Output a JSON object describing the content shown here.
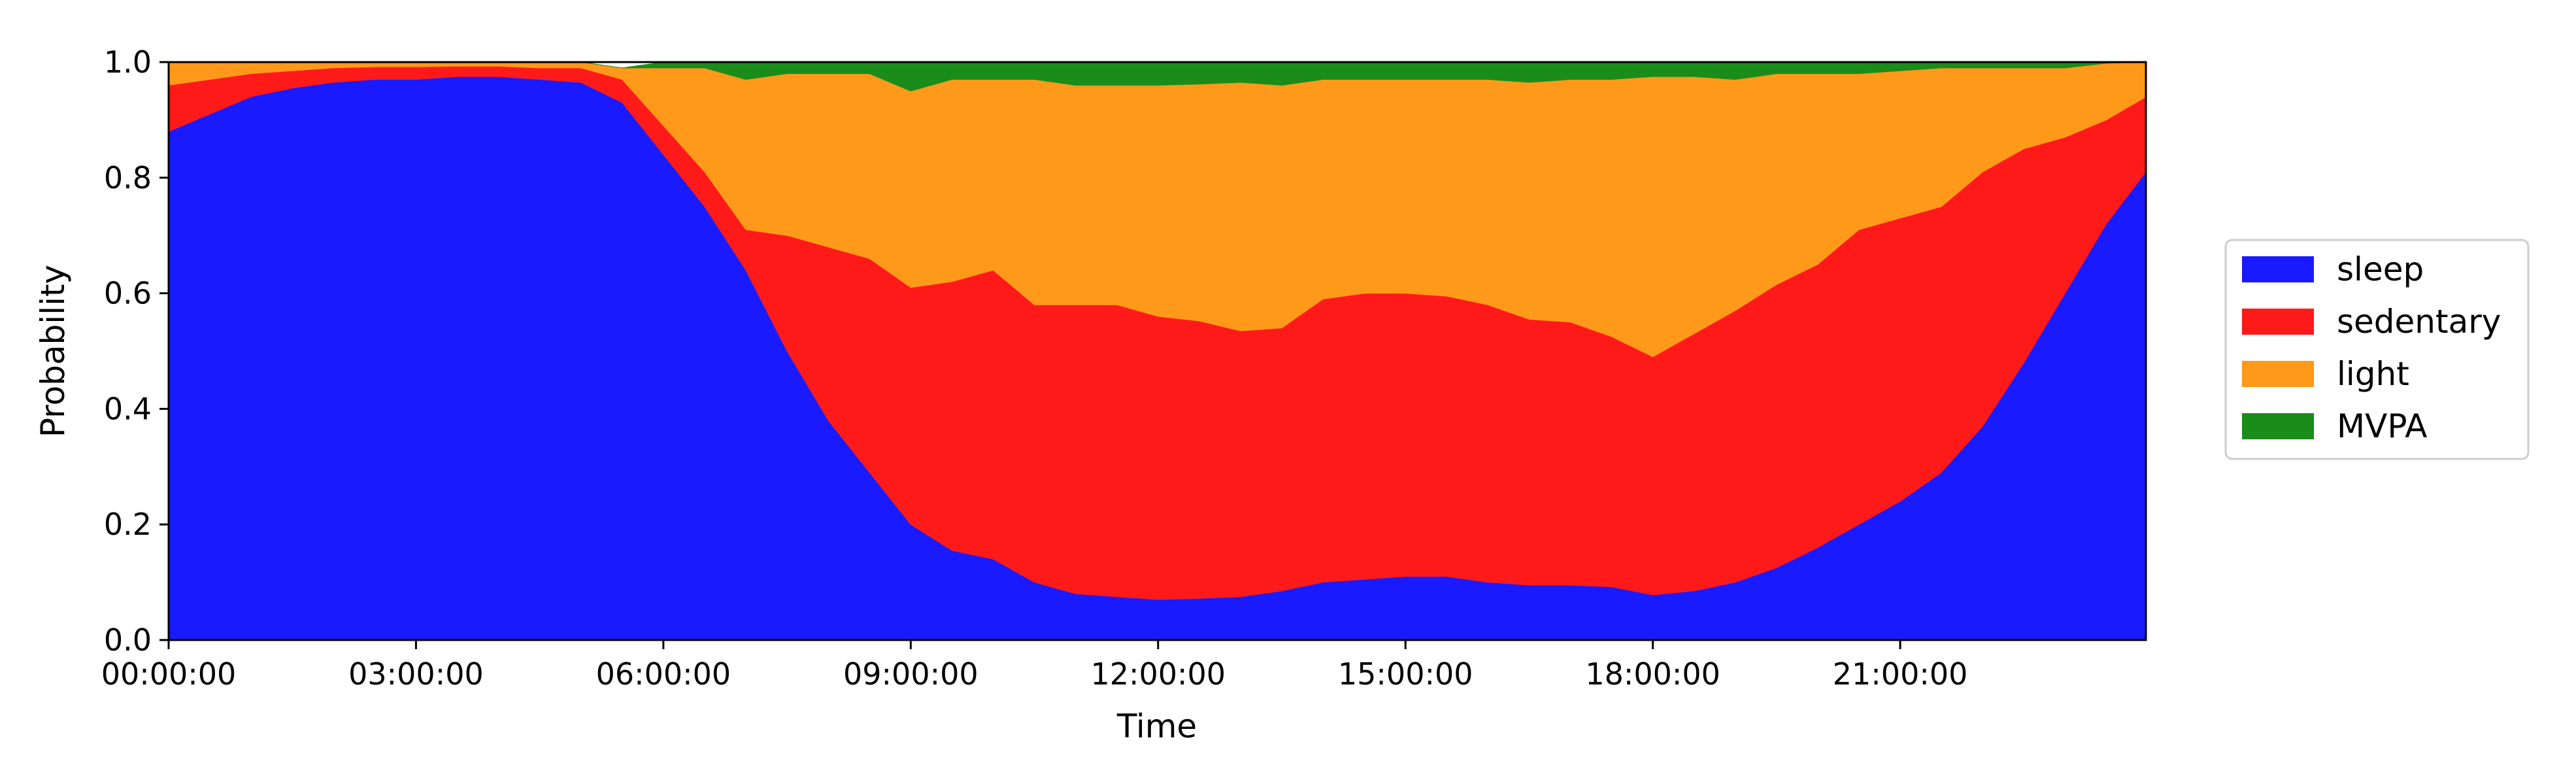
{
  "chart_data": {
    "type": "area",
    "stacked": true,
    "title": "",
    "xlabel": "Time",
    "ylabel": "Probability",
    "xlim": [
      "00:00:00",
      "23:59:59"
    ],
    "ylim": [
      0,
      1
    ],
    "grid": false,
    "legend": {
      "placement": "right-outside",
      "entries": [
        "sleep",
        "sedentary",
        "light",
        "MVPA"
      ]
    },
    "x_ticks": [
      "00:00:00",
      "03:00:00",
      "06:00:00",
      "09:00:00",
      "12:00:00",
      "15:00:00",
      "18:00:00",
      "21:00:00"
    ],
    "y_ticks": [
      "0.0",
      "0.2",
      "0.4",
      "0.6",
      "0.8",
      "1.0"
    ],
    "x_hours": [
      0,
      0.5,
      1,
      1.5,
      2,
      2.5,
      3,
      3.5,
      4,
      4.5,
      5,
      5.5,
      6,
      6.5,
      7,
      7.5,
      8,
      8.5,
      9,
      9.5,
      10,
      10.5,
      11,
      11.5,
      12,
      12.5,
      13,
      13.5,
      14,
      14.5,
      15,
      15.5,
      16,
      16.5,
      17,
      17.5,
      18,
      18.5,
      19,
      19.5,
      20,
      20.5,
      21,
      21.5,
      22,
      22.5,
      23,
      23.5,
      23.98
    ],
    "series": [
      {
        "name": "sleep",
        "color": "#1a1aff",
        "values": [
          0.88,
          0.91,
          0.94,
          0.955,
          0.965,
          0.97,
          0.97,
          0.975,
          0.975,
          0.97,
          0.965,
          0.93,
          0.84,
          0.75,
          0.64,
          0.5,
          0.38,
          0.29,
          0.2,
          0.155,
          0.14,
          0.1,
          0.08,
          0.075,
          0.07,
          0.072,
          0.075,
          0.085,
          0.1,
          0.105,
          0.11,
          0.11,
          0.1,
          0.095,
          0.095,
          0.092,
          0.078,
          0.085,
          0.1,
          0.125,
          0.16,
          0.2,
          0.24,
          0.29,
          0.37,
          0.48,
          0.6,
          0.72,
          0.81
        ]
      },
      {
        "name": "sedentary",
        "color": "#ff1a1a",
        "values": [
          0.08,
          0.06,
          0.04,
          0.03,
          0.025,
          0.022,
          0.022,
          0.018,
          0.018,
          0.02,
          0.025,
          0.04,
          0.05,
          0.06,
          0.07,
          0.2,
          0.3,
          0.37,
          0.41,
          0.465,
          0.5,
          0.48,
          0.5,
          0.505,
          0.49,
          0.48,
          0.46,
          0.455,
          0.49,
          0.495,
          0.49,
          0.485,
          0.48,
          0.46,
          0.455,
          0.433,
          0.412,
          0.445,
          0.47,
          0.49,
          0.49,
          0.51,
          0.49,
          0.46,
          0.44,
          0.37,
          0.27,
          0.18,
          0.13
        ]
      },
      {
        "name": "light",
        "color": "#ff991a",
        "values": [
          0.04,
          0.03,
          0.02,
          0.015,
          0.01,
          0.008,
          0.008,
          0.007,
          0.007,
          0.01,
          0.01,
          0.02,
          0.1,
          0.18,
          0.26,
          0.28,
          0.3,
          0.32,
          0.34,
          0.35,
          0.33,
          0.39,
          0.38,
          0.38,
          0.4,
          0.41,
          0.43,
          0.42,
          0.38,
          0.37,
          0.37,
          0.375,
          0.39,
          0.41,
          0.42,
          0.445,
          0.485,
          0.445,
          0.4,
          0.365,
          0.33,
          0.27,
          0.255,
          0.24,
          0.18,
          0.14,
          0.12,
          0.098,
          0.06
        ]
      },
      {
        "name": "MVPA",
        "color": "#1a8c1a",
        "values": [
          0,
          0,
          0,
          0,
          0,
          0,
          0,
          0,
          0,
          0,
          0,
          0,
          0.01,
          0.01,
          0.03,
          0.02,
          0.02,
          0.02,
          0.05,
          0.03,
          0.03,
          0.03,
          0.04,
          0.04,
          0.04,
          0.038,
          0.035,
          0.04,
          0.03,
          0.03,
          0.03,
          0.03,
          0.03,
          0.035,
          0.03,
          0.03,
          0.025,
          0.025,
          0.03,
          0.02,
          0.02,
          0.02,
          0.015,
          0.01,
          0.01,
          0.01,
          0.01,
          0.002,
          0
        ]
      }
    ]
  }
}
